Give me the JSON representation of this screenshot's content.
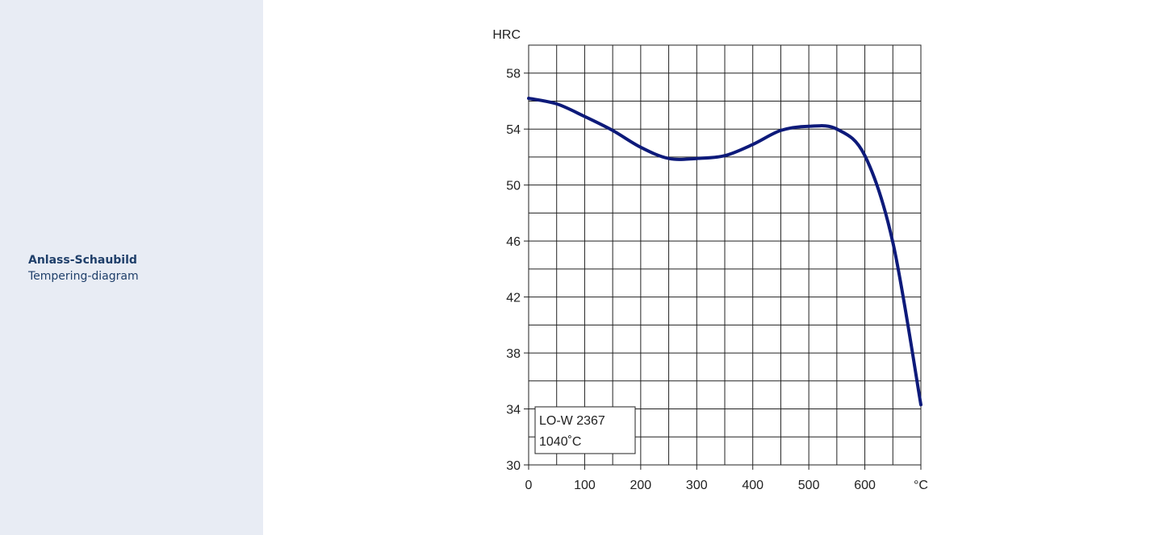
{
  "sidebar": {
    "title": "Anlass-Schaubild",
    "subtitle": "Tempering-diagram"
  },
  "chart_data": {
    "type": "line",
    "ylabel": "HRC",
    "xlabel": "°C",
    "xlim": [
      0,
      700
    ],
    "ylim": [
      30,
      60
    ],
    "x_ticks": [
      0,
      100,
      200,
      300,
      400,
      500,
      600
    ],
    "y_ticks": [
      30,
      34,
      38,
      42,
      46,
      50,
      54,
      58
    ],
    "x_grid_step": 50,
    "y_grid_step": 2,
    "grid": true,
    "legend": {
      "position": "bottom-left",
      "lines": [
        "LO-W 2367",
        "1040˚C"
      ]
    },
    "series": [
      {
        "color": "#0d1a7a",
        "x": [
          0,
          50,
          100,
          150,
          200,
          250,
          300,
          350,
          400,
          450,
          500,
          550,
          600,
          650,
          700
        ],
        "y": [
          56.2,
          55.8,
          54.9,
          53.9,
          52.7,
          51.9,
          51.9,
          52.1,
          52.9,
          53.9,
          54.2,
          54.0,
          52.1,
          45.9,
          34.3
        ]
      }
    ]
  }
}
